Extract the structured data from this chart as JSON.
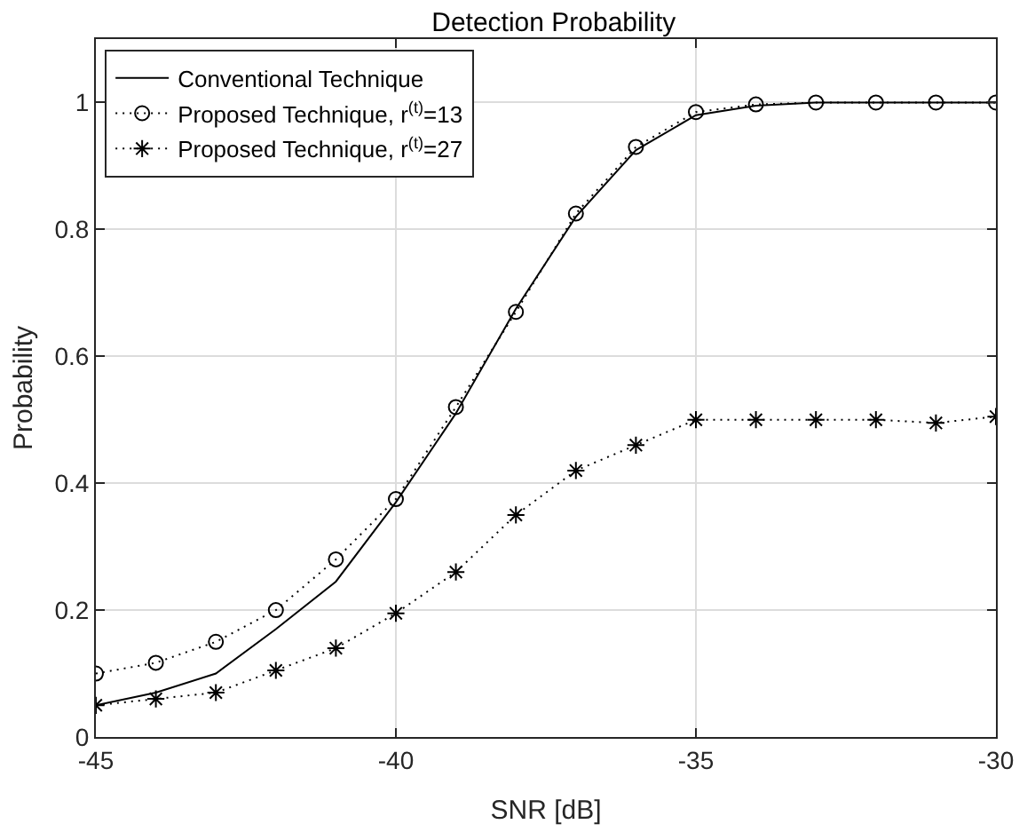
{
  "chart_data": {
    "type": "line",
    "title": "Detection Probability",
    "xlabel": "SNR [dB]",
    "ylabel": "Probability",
    "x": [
      -45,
      -44,
      -43,
      -42,
      -41,
      -40,
      -39,
      -38,
      -37,
      -36,
      -35,
      -34,
      -33,
      -32,
      -31,
      -30
    ],
    "series": [
      {
        "name": "Conventional Technique",
        "color": "#000000",
        "marker": "none",
        "line_style": "solid",
        "values": [
          0.05,
          0.07,
          0.1,
          0.17,
          0.245,
          0.37,
          0.51,
          0.675,
          0.82,
          0.925,
          0.98,
          0.995,
          1,
          1,
          1,
          1
        ]
      },
      {
        "name": "Proposed Technique, r$^{(t)}$=13",
        "color": "#000000",
        "marker": "circle",
        "line_style": "dotted",
        "values": [
          0.1,
          0.117,
          0.15,
          0.2,
          0.28,
          0.375,
          0.52,
          0.67,
          0.825,
          0.93,
          0.985,
          0.997,
          1,
          1,
          1,
          1
        ]
      },
      {
        "name": "Proposed Technique, r$^{(t)}$=27",
        "color": "#000000",
        "marker": "cross",
        "line_style": "dotted",
        "values": [
          0.05,
          0.06,
          0.07,
          0.105,
          0.14,
          0.195,
          0.26,
          0.35,
          0.42,
          0.46,
          0.5,
          0.5,
          0.5,
          0.5,
          0.495,
          0.505
        ]
      }
    ],
    "xlim": [
      -45,
      -30
    ],
    "xticks": [
      -45,
      -40,
      -35,
      -30
    ],
    "ylim": [
      0,
      1.1
    ],
    "yticks": [
      0,
      0.2,
      0.4,
      0.6,
      0.8,
      1
    ],
    "grid": true,
    "legend": "top left"
  }
}
